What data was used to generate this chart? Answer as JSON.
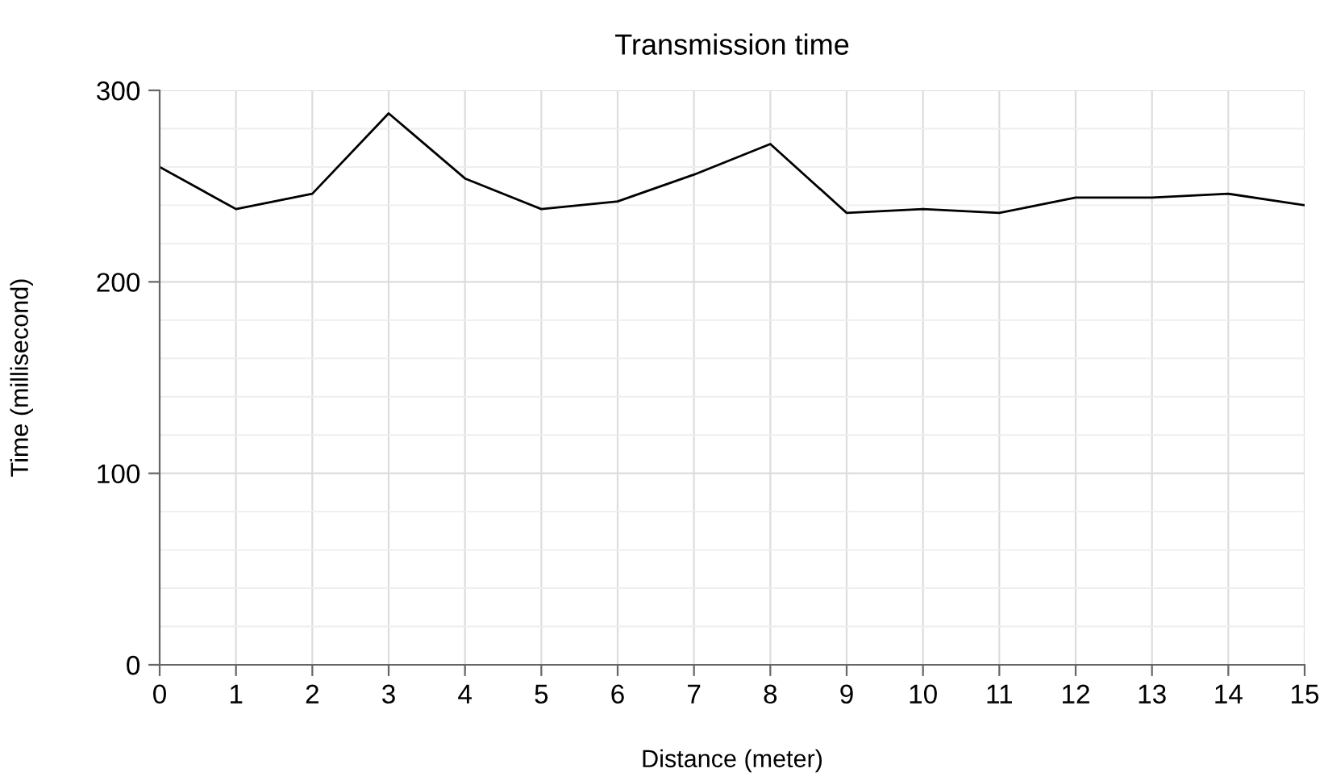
{
  "chart_data": {
    "type": "line",
    "title": "Transmission time",
    "xlabel": "Distance (meter)",
    "ylabel": "Time (millisecond)",
    "x": [
      0,
      1,
      2,
      3,
      4,
      5,
      6,
      7,
      8,
      9,
      10,
      11,
      12,
      13,
      14,
      15
    ],
    "series": [
      {
        "color": "#000000",
        "values": [
          260,
          238,
          246,
          288,
          254,
          238,
          242,
          256,
          272,
          236,
          238,
          236,
          244,
          244,
          246,
          240
        ]
      }
    ],
    "xlim": [
      0,
      15
    ],
    "xticks": [
      0,
      1,
      2,
      3,
      4,
      5,
      6,
      7,
      8,
      9,
      10,
      11,
      12,
      13,
      14,
      15
    ],
    "ylim": [
      0,
      300
    ],
    "yticks": [
      0,
      100,
      200,
      300
    ],
    "grid": true,
    "legend": false,
    "marker": "none",
    "line_style": "solid"
  }
}
